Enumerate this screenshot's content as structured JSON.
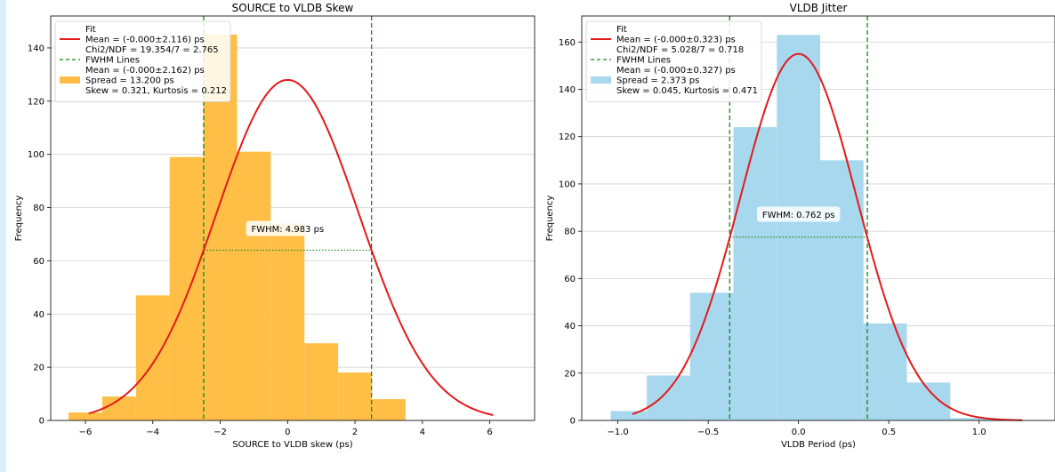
{
  "chart_data": [
    {
      "type": "bar",
      "title": "SOURCE to VLDB Skew",
      "xlabel": "SOURCE to VLDB skew (ps)",
      "ylabel": "Frequency",
      "xlim": [
        -7.03,
        7.33
      ],
      "ylim": [
        0,
        152
      ],
      "xticks": [
        -6,
        -4,
        -2,
        0,
        2,
        4,
        6
      ],
      "yticks": [
        0,
        20,
        40,
        60,
        80,
        100,
        120,
        140
      ],
      "bar_color": "#ffbf47",
      "bin_edges": [
        -6.5,
        -5.5,
        -4.5,
        -3.5,
        -2.5,
        -1.5,
        -0.5,
        0.5,
        1.5,
        2.5,
        3.5,
        4.5,
        5.5,
        6.7
      ],
      "values": [
        3,
        9,
        47,
        99,
        145,
        101,
        74,
        29,
        18,
        8,
        0,
        0,
        0
      ],
      "fit_color": "#e31a1c",
      "fit": {
        "mean": 0.0,
        "sigma": 2.116,
        "amplitude": 128,
        "x_range": [
          -5.9,
          6.1
        ]
      },
      "fwhm_lines": [
        -2.49,
        2.49
      ],
      "fwhm_level": 64,
      "fwhm_label": "FWHM: 4.983 ps",
      "fwhm_label_pos": [
        0,
        72
      ],
      "grid": true,
      "legend_placement": "top-left",
      "legend": {
        "fit_label_lines": [
          "Fit",
          "Mean = (-0.000±2.116) ps",
          "Chi2/NDF = 19.354/7 = 2.765"
        ],
        "fwhm_label": "FWHM Lines",
        "hist_label_lines": [
          "Mean = (-0.000±2.162) ps",
          "Spread = 13.200 ps",
          "Skew = 0.321, Kurtosis = 0.212"
        ]
      }
    },
    {
      "type": "bar",
      "title": "VLDB Jitter",
      "xlabel": "VLDB Period (ps)",
      "ylabel": "Frequency",
      "xlim": [
        -1.2,
        1.42
      ],
      "ylim": [
        0,
        171
      ],
      "xticks": [
        -1.0,
        -0.5,
        0.0,
        0.5,
        1.0
      ],
      "xtick_labels": [
        "−1.0",
        "−0.5",
        "0.0",
        "0.5",
        "1.0"
      ],
      "yticks": [
        0,
        20,
        40,
        60,
        80,
        100,
        120,
        140,
        160
      ],
      "bar_color": "#a8d8ee",
      "bin_edges": [
        -1.04,
        -0.84,
        -0.6,
        -0.36,
        -0.12,
        0.12,
        0.36,
        0.6,
        0.84,
        1.08,
        1.32
      ],
      "values": [
        4,
        19,
        54,
        124,
        163,
        110,
        41,
        16,
        1,
        0
      ],
      "fit_color": "#e31a1c",
      "fit": {
        "mean": 0.0,
        "sigma": 0.323,
        "amplitude": 155,
        "x_range": [
          -0.92,
          1.24
        ]
      },
      "fwhm_lines": [
        -0.381,
        0.381
      ],
      "fwhm_level": 77.5,
      "fwhm_label": "FWHM: 0.762 ps",
      "fwhm_label_pos": [
        0,
        87
      ],
      "grid": true,
      "legend_placement": "top-left",
      "legend": {
        "fit_label_lines": [
          "Fit",
          "Mean = (-0.000±0.323) ps",
          "Chi2/NDF = 5.028/7 = 0.718"
        ],
        "fwhm_label": "FWHM Lines",
        "hist_label_lines": [
          "Mean = (-0.000±0.327) ps",
          "Spread = 2.373 ps",
          "Skew = 0.045, Kurtosis = 0.471"
        ]
      }
    }
  ]
}
